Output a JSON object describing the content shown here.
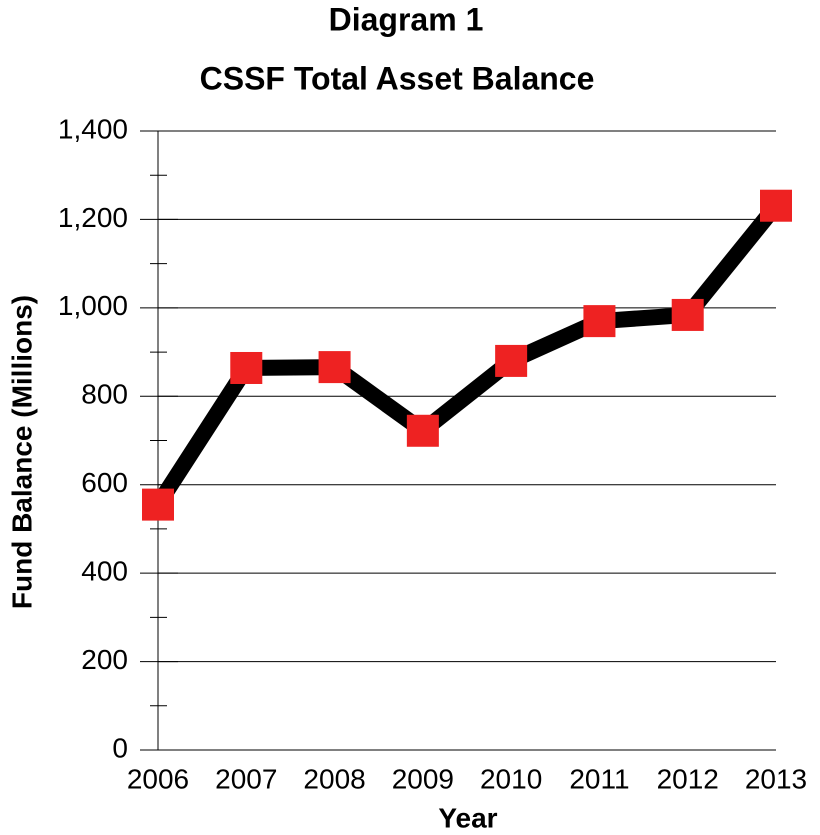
{
  "chart_data": {
    "type": "line",
    "title": "Diagram 1",
    "subtitle": "CSSF Total Asset Balance",
    "x_label": "Year",
    "y_label": "Fund Balance (Millions)",
    "categories": [
      "2006",
      "2007",
      "2008",
      "2009",
      "2010",
      "2011",
      "2012",
      "2013"
    ],
    "values": [
      555,
      864,
      866,
      722,
      880,
      970,
      984,
      1231
    ],
    "line_color": "#000000",
    "marker_color": "#ee2222",
    "ylim": [
      0,
      1400
    ],
    "yticks": [
      0,
      200,
      400,
      600,
      800,
      {
        "value": 1000,
        "label": "1,000"
      },
      {
        "value": 1200,
        "label": "1,200"
      },
      {
        "value": 1400,
        "label": "1,400"
      }
    ],
    "minor_yticks": [
      100,
      300,
      500,
      700,
      900,
      1100,
      1300
    ],
    "grid": true
  }
}
